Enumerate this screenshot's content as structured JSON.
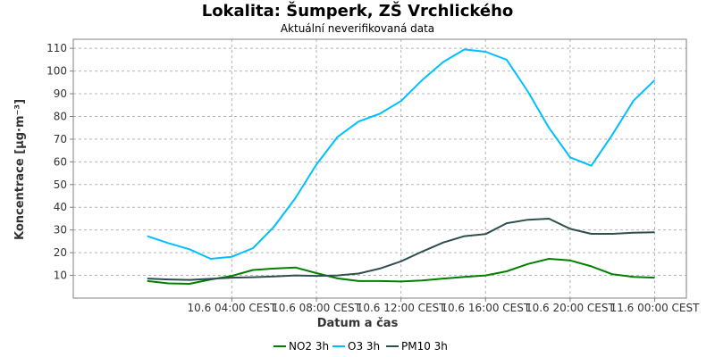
{
  "chart_data": {
    "type": "line",
    "title": "Lokalita: Šumperk, ZŠ Vrchlického",
    "subtitle": "Aktuální neverifikovaná data",
    "xlabel": "Datum a čas",
    "ylabel": "Koncentrace [µg·m⁻³]",
    "ylim": [
      0,
      114
    ],
    "xlim": [
      -3.5,
      25.5
    ],
    "yticks": [
      10,
      20,
      30,
      40,
      50,
      60,
      70,
      80,
      90,
      100,
      110
    ],
    "xticks": [
      {
        "hour": 4,
        "label": "10.6 04:00 CEST"
      },
      {
        "hour": 8,
        "label": "10.6 08:00 CEST"
      },
      {
        "hour": 12,
        "label": "10.6 12:00 CEST"
      },
      {
        "hour": 16,
        "label": "10.6 16:00 CEST"
      },
      {
        "hour": 20,
        "label": "10.6 20:00 CEST"
      },
      {
        "hour": 24,
        "label": "11.6 00:00 CEST"
      }
    ],
    "x": [
      0,
      1,
      2,
      3,
      4,
      5,
      6,
      7,
      8,
      9,
      10,
      11,
      12,
      13,
      14,
      15,
      16,
      17,
      18,
      19,
      20,
      21,
      22,
      23,
      24
    ],
    "grid": true,
    "legend_position": "bottom",
    "series": [
      {
        "name": "NO2 3h",
        "color": "#008000",
        "values": [
          7.5,
          6.5,
          6.3,
          8.2,
          9.8,
          12.4,
          13.0,
          13.5,
          11.0,
          8.7,
          7.5,
          7.5,
          7.3,
          7.8,
          8.6,
          9.3,
          10.0,
          11.8,
          15.0,
          17.3,
          16.6,
          14.0,
          10.5,
          9.3,
          9.0
        ]
      },
      {
        "name": "O3 3h",
        "color": "#00bfff",
        "values": [
          27.3,
          24.2,
          21.5,
          17.3,
          18.2,
          22.0,
          31.5,
          44.0,
          58.8,
          71.0,
          77.8,
          81.2,
          86.8,
          96.0,
          104.0,
          109.5,
          108.5,
          105.0,
          91.0,
          75.0,
          62.0,
          58.3,
          72.0,
          87.0,
          96.0
        ]
      },
      {
        "name": "PM10 3h",
        "color": "#2f4f4f",
        "values": [
          8.6,
          8.2,
          8.0,
          8.5,
          9.0,
          9.2,
          9.5,
          10.0,
          9.8,
          10.0,
          10.8,
          13.0,
          16.2,
          20.5,
          24.5,
          27.3,
          28.2,
          33.0,
          34.5,
          35.0,
          30.5,
          28.3,
          28.3,
          28.8,
          29.0
        ]
      }
    ]
  }
}
